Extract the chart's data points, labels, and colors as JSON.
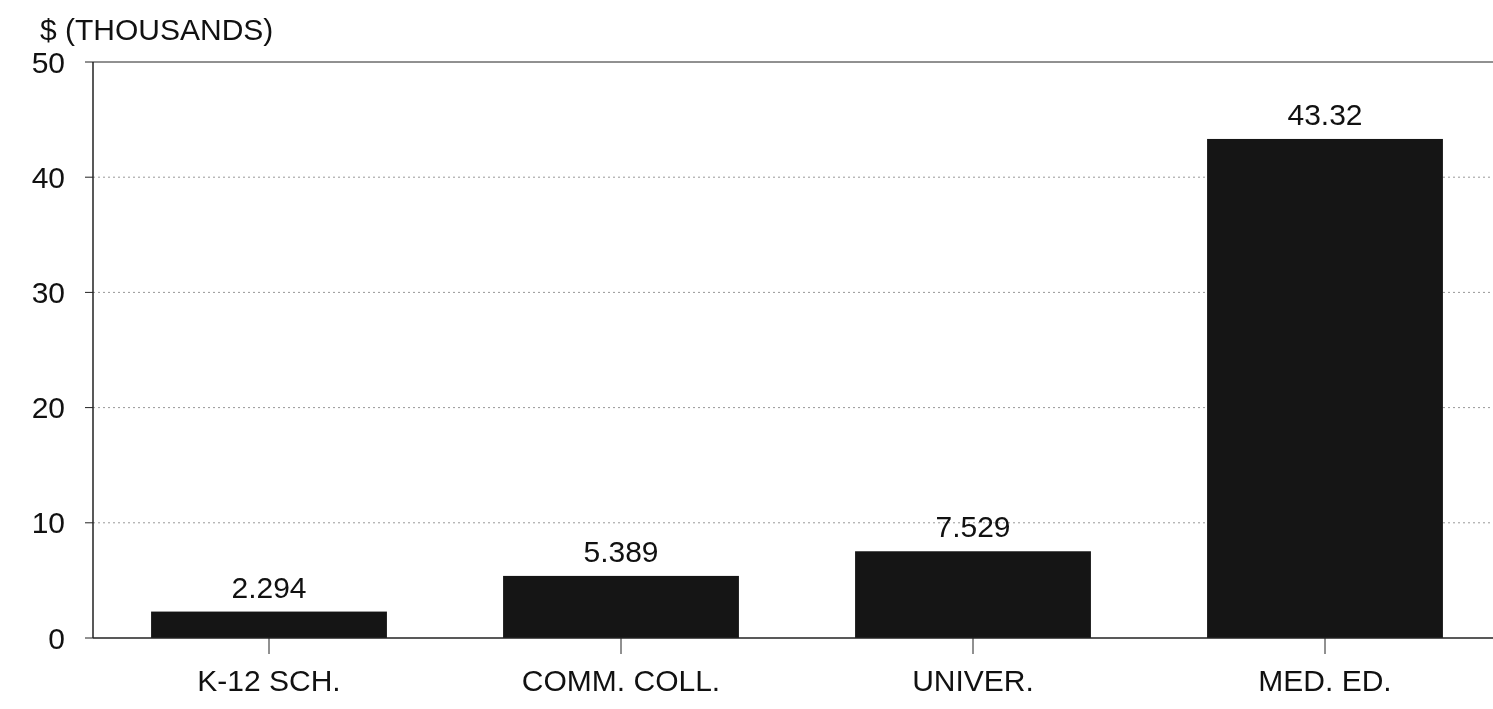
{
  "chart_data": {
    "type": "bar",
    "ylabel": "$ (THOUSANDS)",
    "categories": [
      "K-12 SCH.",
      "COMM. COLL.",
      "UNIVER.",
      "MED. ED."
    ],
    "values": [
      2.294,
      5.389,
      7.529,
      43.32
    ],
    "color": "#151515",
    "ylim": [
      0,
      50
    ],
    "yticks": [
      0,
      10,
      20,
      30,
      40,
      50
    ],
    "grid": "y",
    "data_labels": true
  }
}
